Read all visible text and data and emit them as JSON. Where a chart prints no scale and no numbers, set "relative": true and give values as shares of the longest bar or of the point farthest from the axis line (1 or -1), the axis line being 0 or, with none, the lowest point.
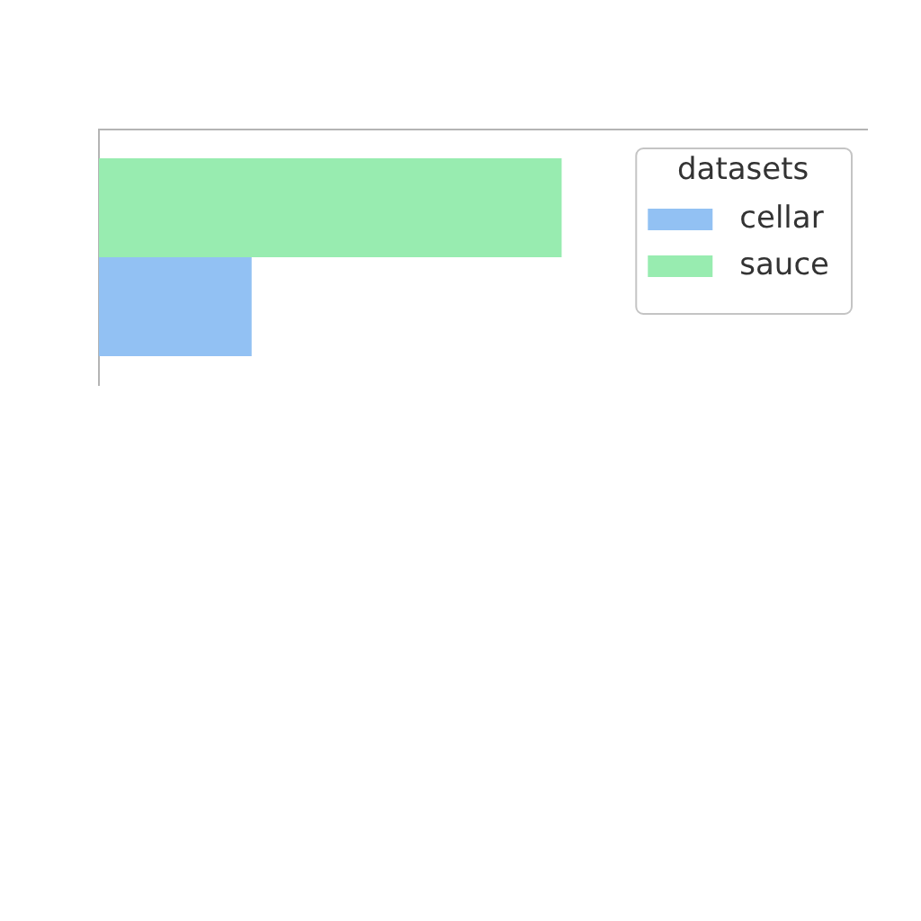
{
  "chart_data": {
    "type": "bar",
    "orientation": "horizontal",
    "relative": true,
    "categories": [
      null
    ],
    "series": [
      {
        "name": "sauce",
        "color": "#98ecb0",
        "values": [
          1
        ]
      },
      {
        "name": "cellar",
        "color": "#92c1f3",
        "values": [
          0.33
        ]
      }
    ],
    "legend": "top right",
    "legend_title": "datasets"
  }
}
